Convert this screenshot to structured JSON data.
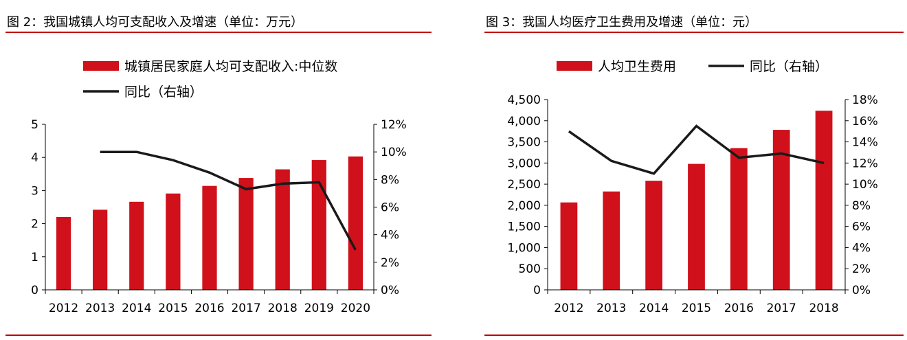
{
  "colors": {
    "bar": "#d0101a",
    "line": "#1a1a1a",
    "rule": "#c00000"
  },
  "chart_data": [
    {
      "type": "bar",
      "title": "图 2：我国城镇人均可支配收入及增速（单位：万元）",
      "categories": [
        "2012",
        "2013",
        "2014",
        "2015",
        "2016",
        "2017",
        "2018",
        "2019",
        "2020"
      ],
      "series": [
        {
          "name": "城镇居民家庭人均可支配收入:中位数",
          "type": "bar",
          "axis": "left",
          "values": [
            2.2,
            2.42,
            2.66,
            2.91,
            3.14,
            3.38,
            3.64,
            3.92,
            4.03
          ]
        },
        {
          "name": "同比（右轴）",
          "type": "line",
          "axis": "right",
          "values": [
            null,
            0.1,
            0.1,
            0.094,
            0.085,
            0.073,
            0.077,
            0.078,
            0.029
          ]
        }
      ],
      "y_left": {
        "min": 0,
        "max": 5,
        "ticks": [
          "0",
          "1",
          "2",
          "3",
          "4",
          "5"
        ]
      },
      "y_right": {
        "min": 0,
        "max": 0.12,
        "ticks": [
          "0%",
          "2%",
          "4%",
          "6%",
          "8%",
          "10%",
          "12%"
        ]
      },
      "legend": "top"
    },
    {
      "type": "bar",
      "title": "图 3：我国人均医疗卫生费用及增速（单位：元）",
      "categories": [
        "2012",
        "2013",
        "2014",
        "2015",
        "2016",
        "2017",
        "2018"
      ],
      "series": [
        {
          "name": "人均卫生费用",
          "type": "bar",
          "axis": "left",
          "values": [
            2068,
            2327,
            2581,
            2980,
            3352,
            3784,
            4237
          ]
        },
        {
          "name": "同比（右轴）",
          "type": "line",
          "axis": "right",
          "values": [
            0.15,
            0.122,
            0.11,
            0.155,
            0.125,
            0.129,
            0.12
          ]
        }
      ],
      "y_left": {
        "min": 0,
        "max": 4500,
        "ticks": [
          "0",
          "500",
          "1,000",
          "1,500",
          "2,000",
          "2,500",
          "3,000",
          "3,500",
          "4,000",
          "4,500"
        ]
      },
      "y_right": {
        "min": 0,
        "max": 0.18,
        "ticks": [
          "0%",
          "2%",
          "4%",
          "6%",
          "8%",
          "10%",
          "12%",
          "14%",
          "16%",
          "18%"
        ]
      },
      "legend": "top"
    }
  ]
}
